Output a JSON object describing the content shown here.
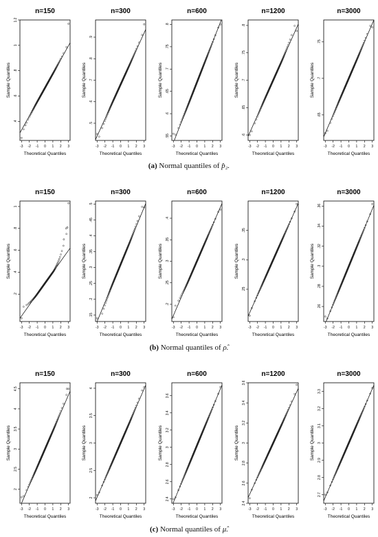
{
  "figure": {
    "captions": [
      {
        "tag": "(a)",
        "text": "Normal quantiles of",
        "symbol": "p̂₂."
      },
      {
        "tag": "(b)",
        "text": "Normal quantiles of",
        "symbol": "ρ̂."
      },
      {
        "tag": "(c)",
        "text": "Normal quantiles of",
        "symbol": "μ̂."
      }
    ]
  },
  "chart_data": [
    {
      "type": "scatter",
      "title": "n=150",
      "xlabel": "Theoretical Quantiles",
      "ylabel": "Sample Quantiles",
      "xlim": [
        -3.2,
        3.2
      ],
      "ylim": [
        0.25,
        1.2
      ],
      "xticks": [
        -3,
        -2,
        -1,
        0,
        1,
        2,
        3
      ],
      "yticks": [
        0.4,
        0.6,
        0.8,
        1.0,
        1.2
      ],
      "line": {
        "intercept": 0.665,
        "slope": 0.111
      },
      "outliers": [
        [
          -3.0,
          0.27
        ],
        [
          -2.5,
          0.37
        ],
        [
          3.0,
          1.17
        ]
      ],
      "tail_bend": [
        -0.02,
        0.015
      ]
    },
    {
      "type": "scatter",
      "title": "n=300",
      "xlabel": "Theoretical Quantiles",
      "ylabel": "Sample Quantiles",
      "xlim": [
        -3.2,
        3.2
      ],
      "ylim": [
        0.42,
        0.98
      ],
      "xticks": [
        -3,
        -2,
        -1,
        0,
        1,
        2,
        3
      ],
      "yticks": [
        0.5,
        0.6,
        0.7,
        0.8,
        0.9
      ],
      "line": {
        "intercept": 0.68,
        "slope": 0.08
      },
      "outliers": [
        [
          -3.0,
          0.45
        ],
        [
          3.0,
          0.96
        ]
      ],
      "tail_bend": [
        -0.02,
        0.01
      ]
    },
    {
      "type": "scatter",
      "title": "n=600",
      "xlabel": "Theoretical Quantiles",
      "ylabel": "Sample Quantiles",
      "xlim": [
        -3.2,
        3.2
      ],
      "ylim": [
        0.54,
        0.81
      ],
      "xticks": [
        -3,
        -2,
        -1,
        0,
        1,
        2,
        3
      ],
      "yticks": [
        0.55,
        0.6,
        0.65,
        0.7,
        0.75,
        0.8
      ],
      "line": {
        "intercept": 0.67,
        "slope": 0.045
      },
      "outliers": [
        [
          -3.0,
          0.555
        ],
        [
          3.0,
          0.8
        ]
      ],
      "tail_bend": [
        0.005,
        0.0
      ]
    },
    {
      "type": "scatter",
      "title": "n=1200",
      "xlabel": "Theoretical Quantiles",
      "ylabel": "Sample Quantiles",
      "xlim": [
        -3.2,
        3.2
      ],
      "ylim": [
        0.59,
        0.81
      ],
      "xticks": [
        -3,
        -2,
        -1,
        0,
        1,
        2,
        3
      ],
      "yticks": [
        0.6,
        0.65,
        0.7,
        0.75,
        0.8
      ],
      "line": {
        "intercept": 0.7,
        "slope": 0.032
      },
      "outliers": [
        [
          -3.0,
          0.6
        ],
        [
          3.0,
          0.79
        ]
      ],
      "tail_bend": [
        -0.005,
        0.01
      ]
    },
    {
      "type": "scatter",
      "title": "n=3000",
      "xlabel": "Theoretical Quantiles",
      "ylabel": "Sample Quantiles",
      "xlim": [
        -3.2,
        3.2
      ],
      "ylim": [
        0.615,
        0.78
      ],
      "xticks": [
        -3,
        -2,
        -1,
        0,
        1,
        2,
        3
      ],
      "yticks": [
        0.65,
        0.7,
        0.75
      ],
      "line": {
        "intercept": 0.7,
        "slope": 0.025
      },
      "outliers": [
        [
          -3.0,
          0.625
        ],
        [
          3.0,
          0.77
        ]
      ],
      "tail_bend": [
        -0.003,
        0.003
      ]
    },
    {
      "type": "scatter",
      "title": "n=150",
      "xlabel": "Theoretical Quantiles",
      "ylabel": "Sample Quantiles",
      "xlim": [
        -3.2,
        3.2
      ],
      "ylim": [
        -0.05,
        1.05
      ],
      "xticks": [
        -3,
        -2,
        -1,
        0,
        1,
        2,
        3
      ],
      "yticks": [
        0.2,
        0.4,
        0.6,
        0.8,
        1.0
      ],
      "line": {
        "intercept": 0.3,
        "slope": 0.1
      },
      "outliers": [
        [
          -3.0,
          -0.02
        ],
        [
          2.4,
          0.7
        ],
        [
          2.7,
          0.8
        ],
        [
          2.85,
          0.81
        ],
        [
          3.0,
          1.03
        ]
      ],
      "tail_bend": [
        0.05,
        0.15
      ]
    },
    {
      "type": "scatter",
      "title": "n=300",
      "xlabel": "Theoretical Quantiles",
      "ylabel": "Sample Quantiles",
      "xlim": [
        -3.2,
        3.2
      ],
      "ylim": [
        0.13,
        0.51
      ],
      "xticks": [
        -3,
        -2,
        -1,
        0,
        1,
        2,
        3
      ],
      "yticks": [
        0.15,
        0.2,
        0.25,
        0.3,
        0.35,
        0.4,
        0.45,
        0.5
      ],
      "line": {
        "intercept": 0.31,
        "slope": 0.06
      },
      "outliers": [
        [
          -3.0,
          0.14
        ],
        [
          3.0,
          0.49
        ]
      ],
      "tail_bend": [
        -0.02,
        0.015
      ]
    },
    {
      "type": "scatter",
      "title": "n=600",
      "xlabel": "Theoretical Quantiles",
      "ylabel": "Sample Quantiles",
      "xlim": [
        -3.2,
        3.2
      ],
      "ylim": [
        0.16,
        0.44
      ],
      "xticks": [
        -3,
        -2,
        -1,
        0,
        1,
        2,
        3
      ],
      "yticks": [
        0.2,
        0.25,
        0.3,
        0.35,
        0.4
      ],
      "line": {
        "intercept": 0.3,
        "slope": 0.042
      },
      "outliers": [
        [
          -3.0,
          0.17
        ],
        [
          3.0,
          0.42
        ]
      ],
      "tail_bend": [
        0.01,
        0.0
      ]
    },
    {
      "type": "scatter",
      "title": "n=1200",
      "xlabel": "Theoretical Quantiles",
      "ylabel": "Sample Quantiles",
      "xlim": [
        -3.2,
        3.2
      ],
      "ylim": [
        0.195,
        0.4
      ],
      "xticks": [
        -3,
        -2,
        -1,
        0,
        1,
        2,
        3
      ],
      "yticks": [
        0.25,
        0.3,
        0.35
      ],
      "line": {
        "intercept": 0.3,
        "slope": 0.03
      },
      "outliers": [
        [
          -3.0,
          0.205
        ],
        [
          3.0,
          0.395
        ]
      ],
      "tail_bend": [
        0.0,
        0.0
      ]
    },
    {
      "type": "scatter",
      "title": "n=3000",
      "xlabel": "Theoretical Quantiles",
      "ylabel": "Sample Quantiles",
      "xlim": [
        -3.2,
        3.2
      ],
      "ylim": [
        0.245,
        0.365
      ],
      "xticks": [
        -3,
        -2,
        -1,
        0,
        1,
        2,
        3
      ],
      "yticks": [
        0.26,
        0.28,
        0.3,
        0.32,
        0.34,
        0.36
      ],
      "line": {
        "intercept": 0.3,
        "slope": 0.019
      },
      "outliers": [
        [
          -3.0,
          0.25
        ],
        [
          3.0,
          0.362
        ]
      ],
      "tail_bend": [
        0.0,
        0.0
      ]
    },
    {
      "type": "scatter",
      "title": "n=150",
      "xlabel": "Theoretical Quantiles",
      "ylabel": "Sample Quantiles",
      "xlim": [
        -3.2,
        3.2
      ],
      "ylim": [
        1.65,
        4.65
      ],
      "xticks": [
        -3,
        -2,
        -1,
        0,
        1,
        2,
        3
      ],
      "yticks": [
        2.0,
        2.5,
        3.0,
        3.5,
        4.0,
        4.5
      ],
      "line": {
        "intercept": 3.0,
        "slope": 0.45
      },
      "outliers": [
        [
          -3.0,
          1.8
        ],
        [
          2.8,
          4.5
        ],
        [
          3.0,
          4.5
        ]
      ],
      "tail_bend": [
        0.05,
        0.1
      ]
    },
    {
      "type": "scatter",
      "title": "n=300",
      "xlabel": "Theoretical Quantiles",
      "ylabel": "Sample Quantiles",
      "xlim": [
        -3.2,
        3.2
      ],
      "ylim": [
        1.9,
        4.1
      ],
      "xticks": [
        -3,
        -2,
        -1,
        0,
        1,
        2,
        3
      ],
      "yticks": [
        2.0,
        2.5,
        3.0,
        3.5,
        4.0
      ],
      "line": {
        "intercept": 3.0,
        "slope": 0.33
      },
      "outliers": [
        [
          -3.0,
          2.05
        ],
        [
          3.0,
          4.02
        ]
      ],
      "tail_bend": [
        0.0,
        0.05
      ]
    },
    {
      "type": "scatter",
      "title": "n=600",
      "xlabel": "Theoretical Quantiles",
      "ylabel": "Sample Quantiles",
      "xlim": [
        -3.2,
        3.2
      ],
      "ylim": [
        2.35,
        3.75
      ],
      "xticks": [
        -3,
        -2,
        -1,
        0,
        1,
        2,
        3
      ],
      "yticks": [
        2.4,
        2.6,
        2.8,
        3.0,
        3.2,
        3.4,
        3.6
      ],
      "line": {
        "intercept": 3.02,
        "slope": 0.22
      },
      "outliers": [
        [
          -3.0,
          2.4
        ],
        [
          3.0,
          3.7
        ]
      ],
      "tail_bend": [
        0.0,
        0.0
      ]
    },
    {
      "type": "scatter",
      "title": "n=1200",
      "xlabel": "Theoretical Quantiles",
      "ylabel": "Sample Quantiles",
      "xlim": [
        -3.2,
        3.2
      ],
      "ylim": [
        2.4,
        3.6
      ],
      "xticks": [
        -3,
        -2,
        -1,
        0,
        1,
        2,
        3
      ],
      "yticks": [
        2.4,
        2.6,
        2.8,
        3.0,
        3.2,
        3.4,
        3.6
      ],
      "line": {
        "intercept": 3.0,
        "slope": 0.17
      },
      "outliers": [
        [
          -3.0,
          2.45
        ],
        [
          3.0,
          3.58
        ]
      ],
      "tail_bend": [
        0.0,
        0.02
      ]
    },
    {
      "type": "scatter",
      "title": "n=3000",
      "xlabel": "Theoretical Quantiles",
      "ylabel": "Sample Quantiles",
      "xlim": [
        -3.2,
        3.2
      ],
      "ylim": [
        2.65,
        3.35
      ],
      "xticks": [
        -3,
        -2,
        -1,
        0,
        1,
        2,
        3
      ],
      "yticks": [
        2.7,
        2.8,
        2.9,
        3.0,
        3.1,
        3.2,
        3.3
      ],
      "line": {
        "intercept": 3.0,
        "slope": 0.105
      },
      "outliers": [
        [
          -3.0,
          2.7
        ],
        [
          3.0,
          3.32
        ]
      ],
      "tail_bend": [
        0.0,
        0.0
      ]
    }
  ]
}
